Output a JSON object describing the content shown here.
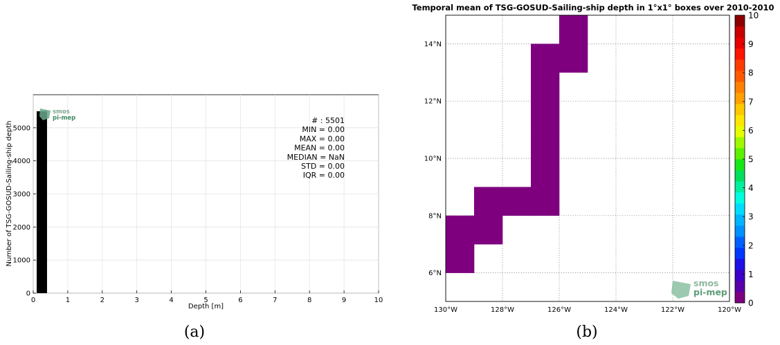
{
  "chart_data": [
    {
      "type": "bar",
      "xlabel": "Depth [m]",
      "ylabel": "Number of TSG-GOSUD-Sailing-ship depth",
      "xlim": [
        0,
        10
      ],
      "ylim": [
        0,
        6000
      ],
      "x_ticks": [
        "0",
        "1",
        "2",
        "3",
        "4",
        "5",
        "6",
        "7",
        "8",
        "9",
        "10"
      ],
      "y_ticks": [
        "0",
        "1000",
        "2000",
        "3000",
        "4000",
        "5000"
      ],
      "grid": true,
      "bins": [
        {
          "x_start": 0.1,
          "x_end": 0.4,
          "count": 5501
        }
      ],
      "bar_color": "#000000",
      "stats": [
        "# : 5501",
        "MIN = 0.00",
        "MAX =  0.00",
        "MEAN = 0.00",
        "MEDIAN = NaN",
        "STD = 0.00",
        "IQR = 0.00"
      ],
      "logo": {
        "line1": "smos",
        "line2": "pi-mep"
      },
      "caption": "(a)"
    },
    {
      "type": "heatmap",
      "title": "Temporal mean of TSG-GOSUD-Sailing-ship depth in 1°x1° boxes over 2010-2010",
      "xlim": [
        -130,
        -120
      ],
      "ylim": [
        5,
        15
      ],
      "x_ticks": [
        {
          "value": -130,
          "label": "130°W"
        },
        {
          "value": -128,
          "label": "128°W"
        },
        {
          "value": -126,
          "label": "126°W"
        },
        {
          "value": -124,
          "label": "124°W"
        },
        {
          "value": -122,
          "label": "122°W"
        },
        {
          "value": -120,
          "label": "120°W"
        }
      ],
      "y_ticks": [
        {
          "value": 6,
          "label": "6°N"
        },
        {
          "value": 8,
          "label": "8°N"
        },
        {
          "value": 10,
          "label": "10°N"
        },
        {
          "value": 12,
          "label": "12°N"
        },
        {
          "value": 14,
          "label": "14°N"
        }
      ],
      "grid": "dotted",
      "cells_value": 0,
      "cell_color": "#7e007e",
      "cells": [
        {
          "lon": -130,
          "lat": 6
        },
        {
          "lon": -130,
          "lat": 7
        },
        {
          "lon": -129,
          "lat": 7
        },
        {
          "lon": -129,
          "lat": 8
        },
        {
          "lon": -128,
          "lat": 8
        },
        {
          "lon": -127,
          "lat": 8
        },
        {
          "lon": -127,
          "lat": 9
        },
        {
          "lon": -127,
          "lat": 10
        },
        {
          "lon": -127,
          "lat": 11
        },
        {
          "lon": -127,
          "lat": 12
        },
        {
          "lon": -127,
          "lat": 13
        },
        {
          "lon": -126,
          "lat": 13
        },
        {
          "lon": -126,
          "lat": 14
        }
      ],
      "colorbar": {
        "min": 0,
        "max": 10,
        "ticks": [
          "0",
          "1",
          "2",
          "3",
          "4",
          "5",
          "6",
          "7",
          "8",
          "9",
          "10"
        ],
        "colors": [
          "#7e007e",
          "#5a00a8",
          "#3c00c8",
          "#1e10e6",
          "#0038ff",
          "#0060ff",
          "#0090ff",
          "#00b4ff",
          "#00dcff",
          "#00ffe0",
          "#00f0a0",
          "#00e05a",
          "#18e618",
          "#5af000",
          "#a0f800",
          "#e6ff00",
          "#ffe600",
          "#ffc800",
          "#ffa000",
          "#ff8000",
          "#ff5a00",
          "#ff3c00",
          "#ff1400",
          "#e60000",
          "#c80000",
          "#8c0000"
        ]
      },
      "logo": {
        "line1": "smos",
        "line2": "pi-mep"
      },
      "caption": "(b)"
    }
  ]
}
